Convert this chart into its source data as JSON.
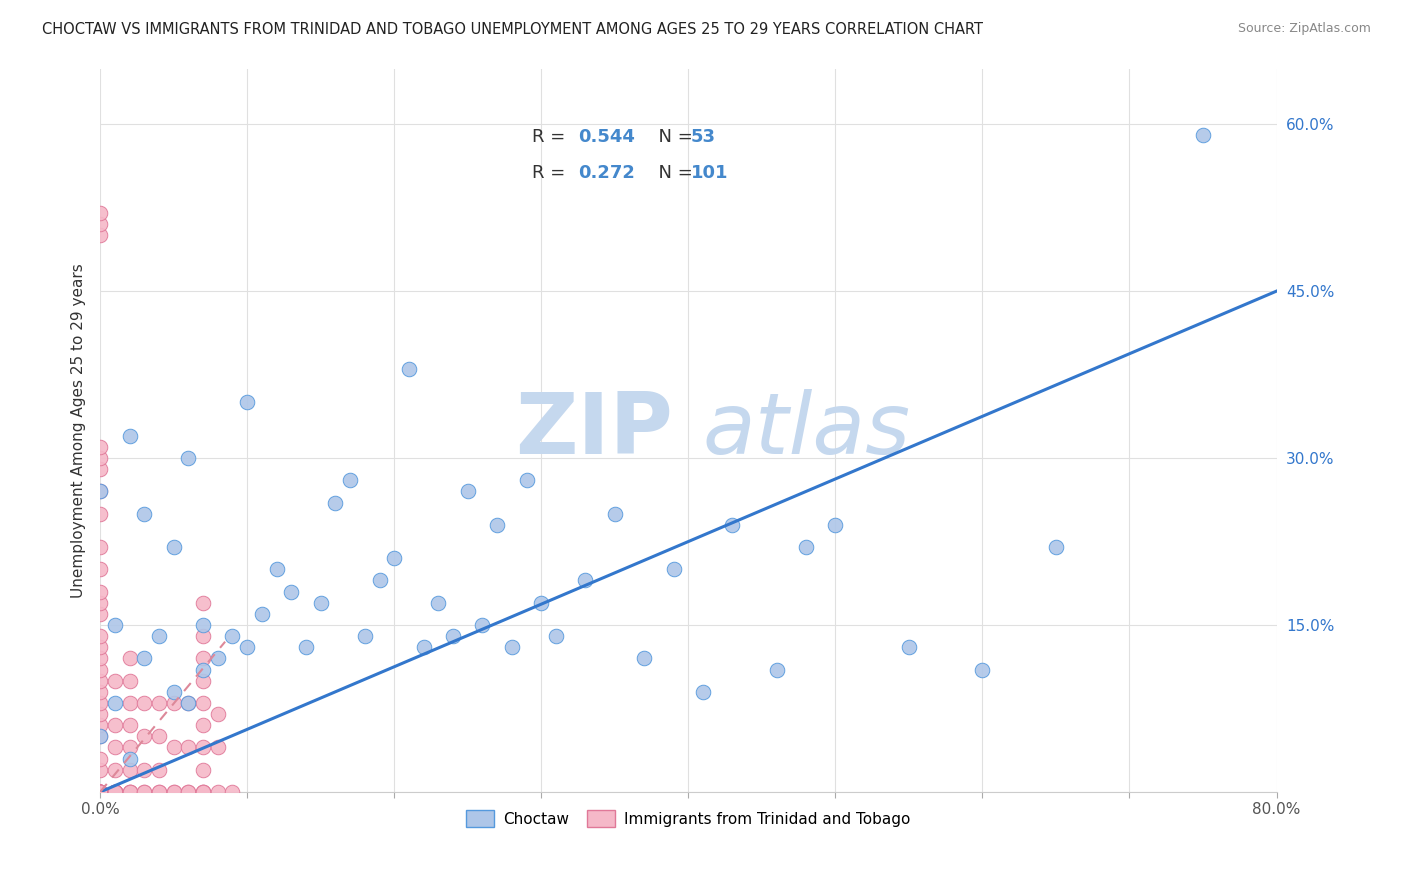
{
  "title": "CHOCTAW VS IMMIGRANTS FROM TRINIDAD AND TOBAGO UNEMPLOYMENT AMONG AGES 25 TO 29 YEARS CORRELATION CHART",
  "source": "Source: ZipAtlas.com",
  "ylabel": "Unemployment Among Ages 25 to 29 years",
  "xlim": [
    0.0,
    0.8
  ],
  "ylim": [
    0.0,
    0.65
  ],
  "ytick_positions": [
    0.0,
    0.15,
    0.3,
    0.45,
    0.6
  ],
  "ytick_labels": [
    "",
    "15.0%",
    "30.0%",
    "45.0%",
    "60.0%"
  ],
  "xtick_positions": [
    0.0,
    0.1,
    0.2,
    0.3,
    0.4,
    0.5,
    0.6,
    0.7,
    0.8
  ],
  "xtick_labels": [
    "0.0%",
    "",
    "",
    "",
    "",
    "",
    "",
    "",
    "80.0%"
  ],
  "blue_R": "0.544",
  "blue_N": "53",
  "pink_R": "0.272",
  "pink_N": "101",
  "blue_fill": "#aec6e8",
  "blue_edge": "#5599dd",
  "pink_fill": "#f5b8c8",
  "pink_edge": "#e07898",
  "blue_line_color": "#3377cc",
  "pink_line_color": "#dd8899",
  "grid_color": "#e0e0e0",
  "legend_color": "#4488cc",
  "blue_line_x": [
    0.0,
    0.8
  ],
  "blue_line_y": [
    0.0,
    0.45
  ],
  "pink_line_x": [
    0.0,
    0.085
  ],
  "pink_line_y": [
    0.0,
    0.135
  ],
  "blue_x": [
    0.0,
    0.0,
    0.01,
    0.01,
    0.02,
    0.02,
    0.03,
    0.03,
    0.04,
    0.05,
    0.05,
    0.06,
    0.06,
    0.07,
    0.07,
    0.08,
    0.09,
    0.1,
    0.1,
    0.11,
    0.12,
    0.13,
    0.14,
    0.15,
    0.16,
    0.17,
    0.18,
    0.19,
    0.2,
    0.21,
    0.22,
    0.23,
    0.24,
    0.25,
    0.26,
    0.27,
    0.28,
    0.29,
    0.3,
    0.31,
    0.33,
    0.35,
    0.37,
    0.39,
    0.41,
    0.43,
    0.46,
    0.48,
    0.5,
    0.55,
    0.6,
    0.65,
    0.75
  ],
  "blue_y": [
    0.05,
    0.27,
    0.08,
    0.15,
    0.03,
    0.32,
    0.12,
    0.25,
    0.14,
    0.09,
    0.22,
    0.08,
    0.3,
    0.11,
    0.15,
    0.12,
    0.14,
    0.13,
    0.35,
    0.16,
    0.2,
    0.18,
    0.13,
    0.17,
    0.26,
    0.28,
    0.14,
    0.19,
    0.21,
    0.38,
    0.13,
    0.17,
    0.14,
    0.27,
    0.15,
    0.24,
    0.13,
    0.28,
    0.17,
    0.14,
    0.19,
    0.25,
    0.12,
    0.2,
    0.09,
    0.24,
    0.11,
    0.22,
    0.24,
    0.13,
    0.11,
    0.22,
    0.59
  ],
  "pink_x": [
    0.0,
    0.0,
    0.0,
    0.0,
    0.0,
    0.0,
    0.0,
    0.0,
    0.0,
    0.0,
    0.0,
    0.0,
    0.0,
    0.0,
    0.0,
    0.0,
    0.0,
    0.0,
    0.0,
    0.0,
    0.0,
    0.0,
    0.0,
    0.0,
    0.0,
    0.0,
    0.0,
    0.0,
    0.0,
    0.0,
    0.0,
    0.0,
    0.0,
    0.0,
    0.0,
    0.0,
    0.0,
    0.0,
    0.0,
    0.0,
    0.0,
    0.0,
    0.0,
    0.0,
    0.0,
    0.0,
    0.01,
    0.01,
    0.01,
    0.01,
    0.01,
    0.01,
    0.01,
    0.01,
    0.01,
    0.01,
    0.01,
    0.01,
    0.01,
    0.02,
    0.02,
    0.02,
    0.02,
    0.02,
    0.02,
    0.02,
    0.02,
    0.02,
    0.03,
    0.03,
    0.03,
    0.03,
    0.03,
    0.04,
    0.04,
    0.04,
    0.04,
    0.04,
    0.05,
    0.05,
    0.05,
    0.05,
    0.06,
    0.06,
    0.06,
    0.06,
    0.07,
    0.07,
    0.07,
    0.07,
    0.07,
    0.07,
    0.07,
    0.07,
    0.07,
    0.07,
    0.07,
    0.08,
    0.08,
    0.08,
    0.09
  ],
  "pink_y": [
    0.0,
    0.0,
    0.0,
    0.0,
    0.0,
    0.0,
    0.0,
    0.0,
    0.0,
    0.0,
    0.0,
    0.0,
    0.0,
    0.0,
    0.0,
    0.0,
    0.0,
    0.0,
    0.0,
    0.0,
    0.02,
    0.03,
    0.05,
    0.06,
    0.07,
    0.08,
    0.09,
    0.1,
    0.11,
    0.12,
    0.13,
    0.14,
    0.16,
    0.17,
    0.18,
    0.2,
    0.22,
    0.25,
    0.27,
    0.29,
    0.3,
    0.31,
    0.5,
    0.51,
    0.52,
    0.0,
    0.0,
    0.0,
    0.0,
    0.0,
    0.0,
    0.0,
    0.0,
    0.0,
    0.0,
    0.02,
    0.04,
    0.06,
    0.1,
    0.0,
    0.0,
    0.0,
    0.02,
    0.04,
    0.06,
    0.08,
    0.1,
    0.12,
    0.0,
    0.0,
    0.02,
    0.05,
    0.08,
    0.0,
    0.0,
    0.02,
    0.05,
    0.08,
    0.0,
    0.0,
    0.04,
    0.08,
    0.0,
    0.0,
    0.04,
    0.08,
    0.0,
    0.0,
    0.0,
    0.02,
    0.04,
    0.06,
    0.08,
    0.1,
    0.12,
    0.14,
    0.17,
    0.0,
    0.04,
    0.07,
    0.0
  ]
}
